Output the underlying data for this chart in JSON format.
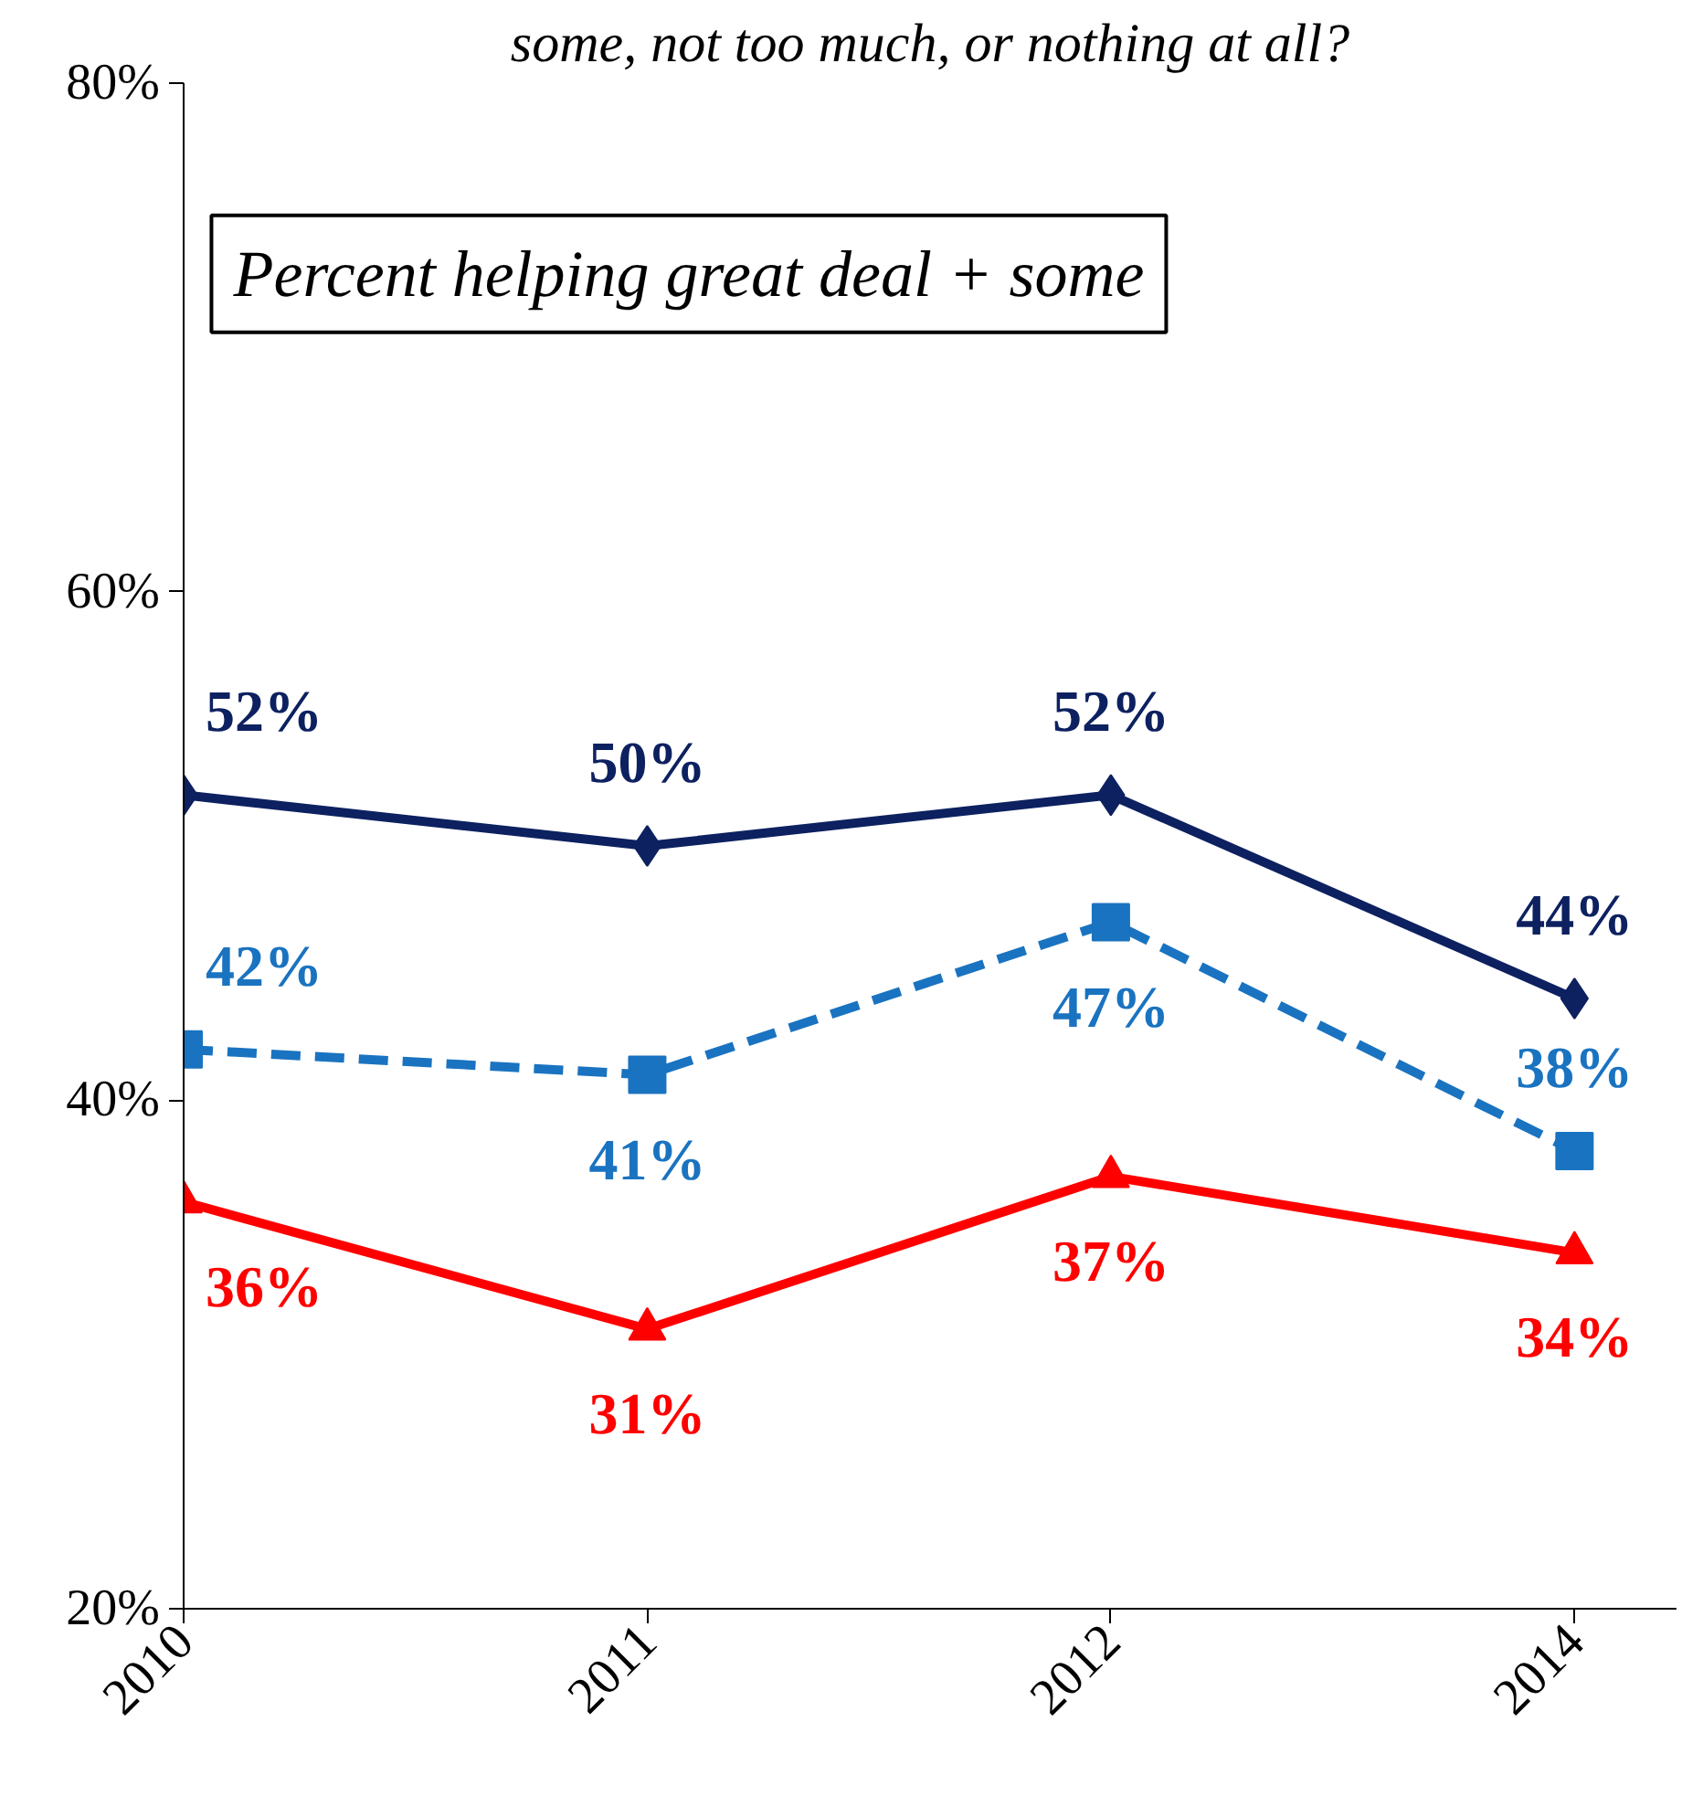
{
  "chart_data": {
    "type": "line",
    "title": "some, not too much, or nothing at all?",
    "categories": [
      "2010",
      "2011",
      "2012",
      "2014"
    ],
    "series": [
      {
        "color": "#0d2160",
        "values": [
          52,
          50,
          52,
          44
        ],
        "marker": "diamond",
        "line_style": "solid",
        "value_labels": [
          "52%",
          "50%",
          "52%",
          "44%"
        ]
      },
      {
        "color": "#1a73c0",
        "values": [
          42,
          41,
          47,
          38
        ],
        "marker": "square",
        "line_style": "dashed",
        "value_labels": [
          "42%",
          "41%",
          "47%",
          "38%"
        ]
      },
      {
        "color": "#ff0000",
        "values": [
          36,
          31,
          37,
          34
        ],
        "marker": "triangle",
        "line_style": "solid",
        "value_labels": [
          "36%",
          "31%",
          "37%",
          "34%"
        ]
      }
    ],
    "ylim": [
      20,
      80
    ],
    "yticks": [
      {
        "value": 20,
        "label": "20%"
      },
      {
        "value": 40,
        "label": "40%"
      },
      {
        "value": 60,
        "label": "60%"
      },
      {
        "value": 80,
        "label": "80%"
      }
    ],
    "annotations": [
      "Percent helping great deal + some"
    ],
    "grid": false
  }
}
